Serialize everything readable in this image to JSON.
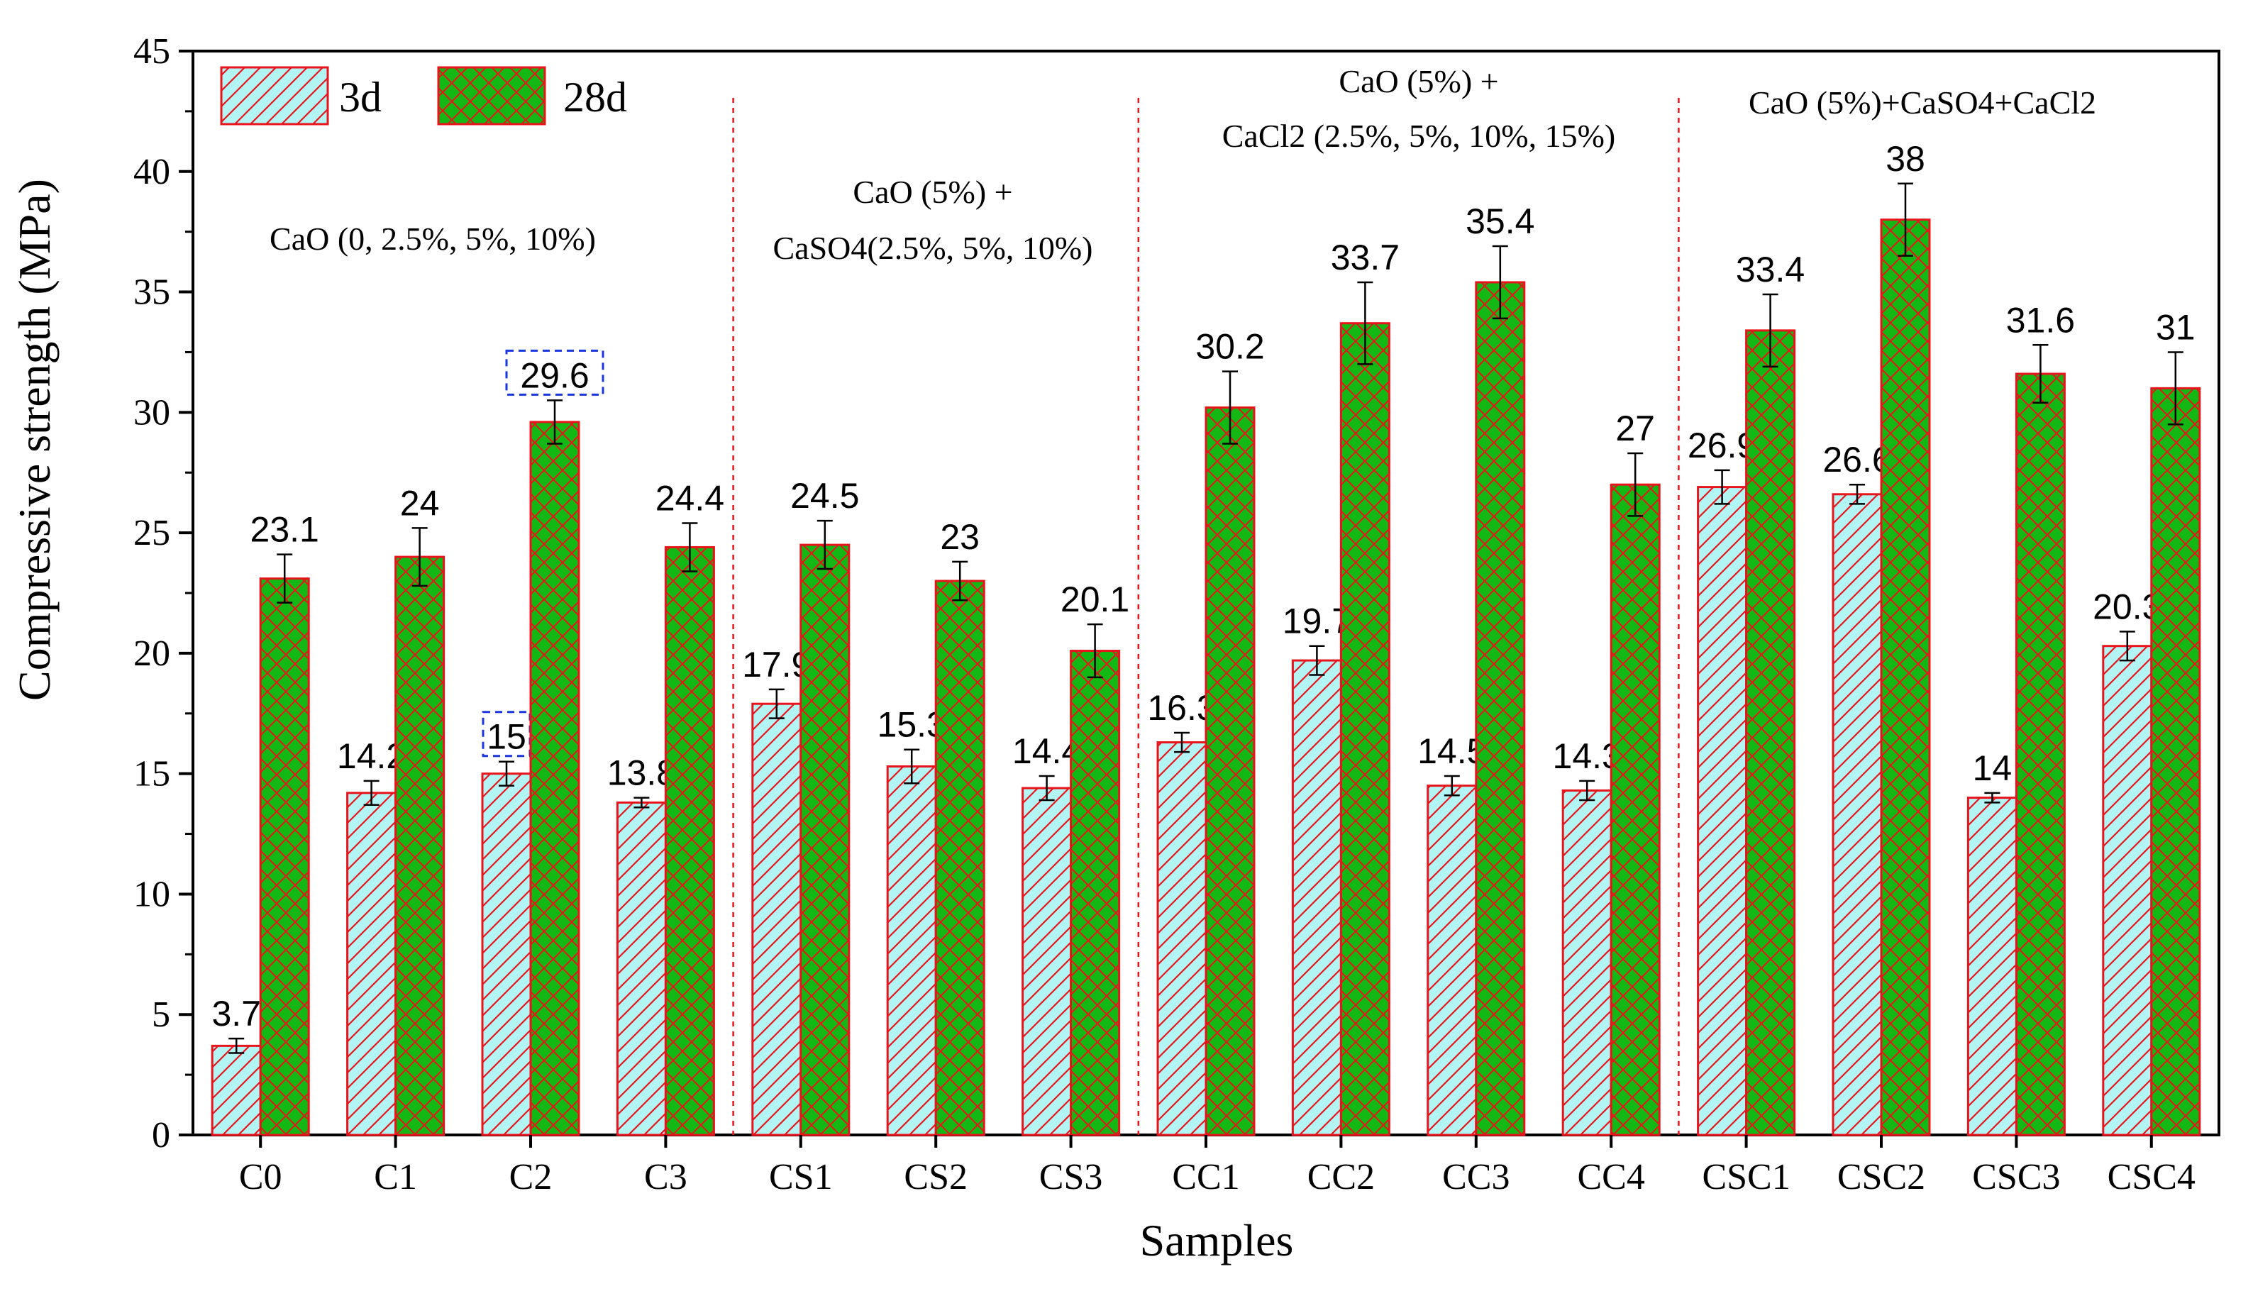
{
  "chart_data": {
    "type": "bar",
    "xlabel": "Samples",
    "ylabel": "Compressive strength (MPa)",
    "ylim": [
      0,
      45
    ],
    "yticks": [
      "0",
      "5",
      "10",
      "15",
      "20",
      "25",
      "30",
      "35",
      "40",
      "45"
    ],
    "categories": [
      "C0",
      "C1",
      "C2",
      "C3",
      "CS1",
      "CS2",
      "CS3",
      "CC1",
      "CC2",
      "CC3",
      "CC4",
      "CSC1",
      "CSC2",
      "CSC3",
      "CSC4"
    ],
    "series": [
      {
        "name": "3d",
        "color": "#b3f5f5",
        "edge": "#e8141b",
        "values": [
          3.7,
          14.2,
          15,
          13.8,
          17.9,
          15.3,
          14.4,
          16.3,
          19.7,
          14.5,
          14.3,
          26.9,
          26.6,
          14,
          20.3
        ],
        "labels": [
          "3.7",
          "14.2",
          "15",
          "13.8",
          "17.9",
          "15.3",
          "14.4",
          "16.3",
          "19.7",
          "14.5",
          "14.3",
          "26.9",
          "26.6",
          "14",
          "20.3"
        ],
        "errors": [
          0.3,
          0.5,
          0.5,
          0.2,
          0.6,
          0.7,
          0.5,
          0.4,
          0.6,
          0.4,
          0.4,
          0.7,
          0.4,
          0.2,
          0.6
        ]
      },
      {
        "name": "28d",
        "color": "#14b814",
        "edge": "#e8141b",
        "values": [
          23.1,
          24,
          29.6,
          24.4,
          24.5,
          23,
          20.1,
          30.2,
          33.7,
          35.4,
          27,
          33.4,
          38,
          31.6,
          31
        ],
        "labels": [
          "23.1",
          "24",
          "29.6",
          "24.4",
          "24.5",
          "23",
          "20.1",
          "30.2",
          "33.7",
          "35.4",
          "27",
          "33.4",
          "38",
          "31.6",
          "31"
        ],
        "errors": [
          1.0,
          1.2,
          0.9,
          1.0,
          1.0,
          0.8,
          1.1,
          1.5,
          1.7,
          1.5,
          1.3,
          1.5,
          1.5,
          1.2,
          1.5
        ]
      }
    ],
    "groups": [
      {
        "lines": [
          "CaO (0, 2.5%, 5%, 10%)"
        ]
      },
      {
        "lines": [
          "CaO (5%) +",
          "CaSO4(2.5%, 5%, 10%)"
        ]
      },
      {
        "lines": [
          "CaO (5%) +",
          "CaCl2 (2.5%, 5%, 10%, 15%)"
        ]
      },
      {
        "lines": [
          "CaO (5%)+CaSO4+CaCl2"
        ]
      }
    ],
    "highlights": [
      "C2:3d",
      "C2:28d"
    ],
    "legend": {
      "placement": "top-left",
      "entries": [
        "3d",
        "28d"
      ]
    }
  }
}
